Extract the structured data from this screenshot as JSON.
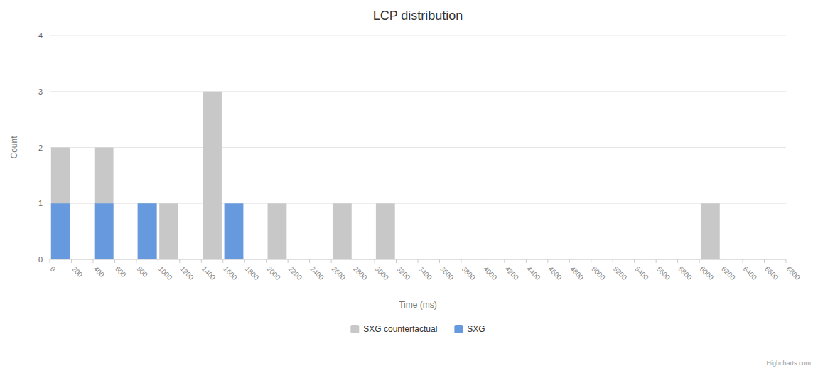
{
  "chart_data": {
    "type": "bar",
    "title": "LCP distribution",
    "xlabel": "Time (ms)",
    "ylabel": "Count",
    "bin_width": 200,
    "series": [
      {
        "name": "SXG counterfactual",
        "color": "#c8c8c8",
        "x": [
          0,
          400,
          800,
          1000,
          1400,
          2000,
          2600,
          3000,
          6000
        ],
        "values": [
          2,
          2,
          1,
          1,
          3,
          1,
          1,
          1,
          1
        ]
      },
      {
        "name": "SXG",
        "color": "#6699dd",
        "x": [
          0,
          400,
          800,
          1600
        ],
        "values": [
          1,
          1,
          1,
          1
        ]
      }
    ],
    "xlim": [
      0,
      6800
    ],
    "xticks": [
      0,
      200,
      400,
      600,
      800,
      1000,
      1200,
      1400,
      1600,
      1800,
      2000,
      2200,
      2400,
      2600,
      2800,
      3000,
      3200,
      3400,
      3600,
      3800,
      4000,
      4200,
      4400,
      4600,
      4800,
      5000,
      5200,
      5400,
      5600,
      5800,
      6000,
      6200,
      6400,
      6600,
      6800
    ],
    "ylim": [
      0,
      4
    ],
    "yticks": [
      0,
      1,
      2,
      3,
      4
    ],
    "grid": true,
    "legend": "bottom",
    "credits": "Highcharts.com"
  }
}
